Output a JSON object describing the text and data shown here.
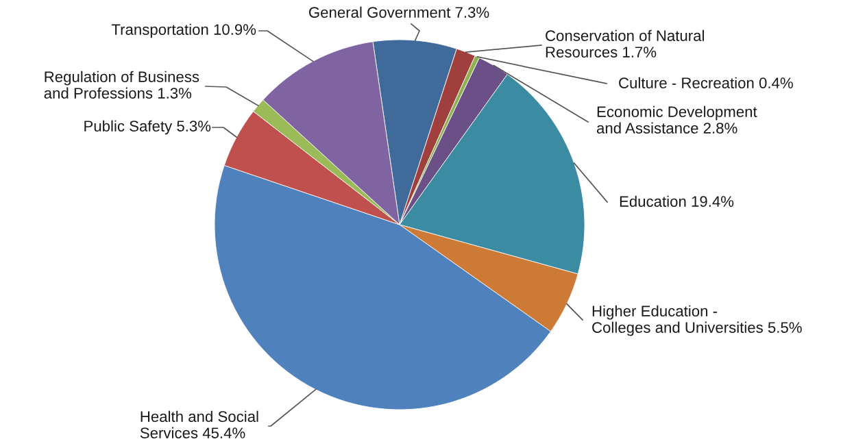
{
  "chart_data": {
    "type": "pie",
    "categories": [
      "General Government",
      "Conservation of Natural\nResources",
      "Culture - Recreation",
      "Economic Development\nand Assistance",
      "Education",
      "Higher Education -\nColleges and Universities",
      "Health and Social\nServices",
      "Public Safety",
      "Regulation of Business\nand Professions",
      "Transportation"
    ],
    "values": [
      7.3,
      1.7,
      0.4,
      2.8,
      19.4,
      5.5,
      45.4,
      5.3,
      1.3,
      10.9
    ],
    "value_labels": [
      "7.3%",
      "1.7%",
      "0.4%",
      "2.8%",
      "19.4%",
      "5.5%",
      "45.4%",
      "5.3%",
      "1.3%",
      "10.9%"
    ],
    "colors": [
      "#3f6a9a",
      "#a0403e",
      "#8fb04f",
      "#6a5087",
      "#3b8ca3",
      "#cd7a37",
      "#4f81bd",
      "#c0504d",
      "#9bbb59",
      "#8064a2"
    ],
    "legend": false
  }
}
